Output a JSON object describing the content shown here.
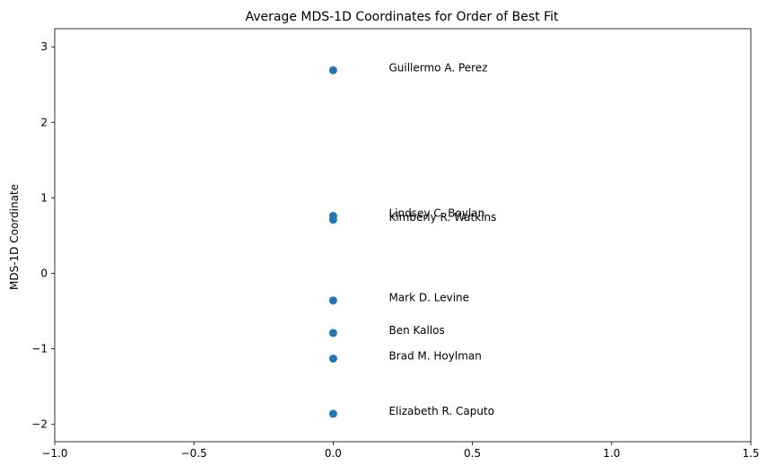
{
  "chart_data": {
    "type": "scatter",
    "title": "Average MDS-1D Coordinates for Order of Best Fit",
    "xlabel": "",
    "ylabel": "MDS-1D Coordinate",
    "xlim": [
      -1.0,
      1.5
    ],
    "ylim": [
      -2.23,
      3.24
    ],
    "grid": false,
    "xticks": [
      -1.0,
      -0.5,
      0.0,
      0.5,
      1.0,
      1.5
    ],
    "xtick_labels": [
      "−1.0",
      "−0.5",
      "0.0",
      "0.5",
      "1.0",
      "1.5"
    ],
    "yticks": [
      -2,
      -1,
      0,
      1,
      2,
      3
    ],
    "ytick_labels": [
      "−2",
      "−1",
      "0",
      "1",
      "2",
      "3"
    ],
    "marker_color": "#1f77b4",
    "points": [
      {
        "label": "Guillermo A. Perez",
        "x": 0.0,
        "y": 2.69
      },
      {
        "label": "Lindsey C. Boylan",
        "x": 0.0,
        "y": 0.76
      },
      {
        "label": "Kimberly R. Watkins",
        "x": 0.0,
        "y": 0.71
      },
      {
        "label": "Mark D. Levine",
        "x": 0.0,
        "y": -0.36
      },
      {
        "label": "Ben Kallos",
        "x": 0.0,
        "y": -0.79
      },
      {
        "label": "Brad M. Hoylman",
        "x": 0.0,
        "y": -1.13
      },
      {
        "label": "Elizabeth R. Caputo",
        "x": 0.0,
        "y": -1.86
      }
    ],
    "label_offset_x": 0.2
  }
}
